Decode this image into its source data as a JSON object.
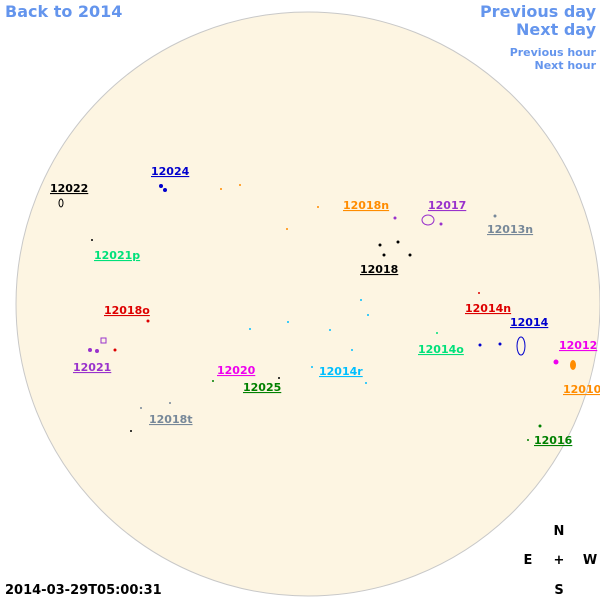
{
  "navigation": {
    "back": "Back to 2014",
    "previous_day": "Previous day",
    "next_day": "Next day",
    "previous_hour": "Previous hour",
    "next_hour": "Next hour"
  },
  "regions": [
    {
      "label": "12022",
      "color": "#000000"
    },
    {
      "label": "12024",
      "color": "#0000cd"
    },
    {
      "label": "12018n",
      "color": "#ff8c00"
    },
    {
      "label": "12017",
      "color": "#9932cc"
    },
    {
      "label": "12013n",
      "color": "#778899"
    },
    {
      "label": "12021p",
      "color": "#00e07a"
    },
    {
      "label": "12018",
      "color": "#000000"
    },
    {
      "label": "12018o",
      "color": "#dd0000"
    },
    {
      "label": "12014n",
      "color": "#dd0000"
    },
    {
      "label": "12014",
      "color": "#0000cd"
    },
    {
      "label": "12012",
      "color": "#ee00ee"
    },
    {
      "label": "12014o",
      "color": "#00e07a"
    },
    {
      "label": "12021",
      "color": "#9932cc"
    },
    {
      "label": "12020",
      "color": "#ee00ee"
    },
    {
      "label": "12014r",
      "color": "#00bfff"
    },
    {
      "label": "12025",
      "color": "#008000"
    },
    {
      "label": "12010",
      "color": "#ff8c00"
    },
    {
      "label": "12018t",
      "color": "#778899"
    },
    {
      "label": "12016",
      "color": "#008000"
    }
  ],
  "compass": {
    "north": "N",
    "east": "E",
    "center": "+",
    "west": "W",
    "south": "S"
  },
  "timestamp": "2014-03-29T05:00:31"
}
